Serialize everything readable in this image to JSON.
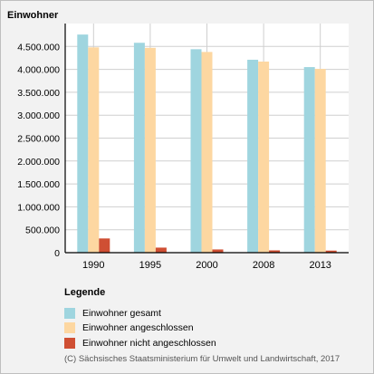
{
  "chart_data": {
    "type": "bar",
    "title": "Einwohner",
    "categories": [
      "1990",
      "1995",
      "2000",
      "2008",
      "2013"
    ],
    "series": [
      {
        "name": "Einwohner gesamt",
        "color": "#9fd5df",
        "values": [
          4760000,
          4580000,
          4440000,
          4210000,
          4050000
        ]
      },
      {
        "name": "Einwohner angeschlossen",
        "color": "#fdd7a1",
        "values": [
          4480000,
          4470000,
          4380000,
          4170000,
          4010000
        ]
      },
      {
        "name": "Einwohner nicht angeschlossen",
        "color": "#cf4f33",
        "values": [
          310000,
          110000,
          70000,
          50000,
          45000
        ]
      }
    ],
    "yticks": [
      "0",
      "500.000",
      "1.000.000",
      "1.500.000",
      "2.000.000",
      "2.500.000",
      "3.000.000",
      "3.500.000",
      "4.000.000",
      "4.500.000"
    ],
    "ylim": [
      0,
      5000000
    ],
    "grid": true,
    "legend_placement": "bottom"
  },
  "legend": {
    "title": "Legende",
    "items": [
      {
        "label": "Einwohner gesamt",
        "color": "#9fd5df"
      },
      {
        "label": "Einwohner angeschlossen",
        "color": "#fdd7a1"
      },
      {
        "label": "Einwohner nicht angeschlossen",
        "color": "#cf4f33"
      }
    ]
  },
  "copyright": "(C) Sächsisches Staatsministerium für Umwelt und Landwirtschaft, 2017"
}
